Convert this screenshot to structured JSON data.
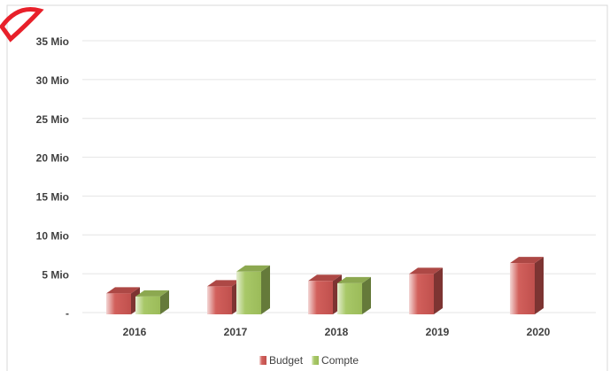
{
  "chart_data": {
    "type": "bar3d",
    "categories": [
      "2016",
      "2017",
      "2018",
      "2019",
      "2020"
    ],
    "series": [
      {
        "name": "Budget",
        "color": "#c0504d",
        "values": [
          2.7,
          3.6,
          4.3,
          5.2,
          6.6
        ]
      },
      {
        "name": "Compte",
        "color": "#9bbb59",
        "values": [
          2.3,
          5.5,
          4.0,
          null,
          null
        ]
      }
    ],
    "ylim": [
      0,
      35
    ],
    "yticks": [
      {
        "value": 0,
        "label": "-"
      },
      {
        "value": 5,
        "label": "5 Mio"
      },
      {
        "value": 10,
        "label": "10 Mio"
      },
      {
        "value": 15,
        "label": "15 Mio"
      },
      {
        "value": 20,
        "label": "20 Mio"
      },
      {
        "value": 25,
        "label": "25 Mio"
      },
      {
        "value": 30,
        "label": "30 Mio"
      },
      {
        "value": 35,
        "label": "35 Mio"
      }
    ],
    "grid": true,
    "legend": "bottom"
  }
}
